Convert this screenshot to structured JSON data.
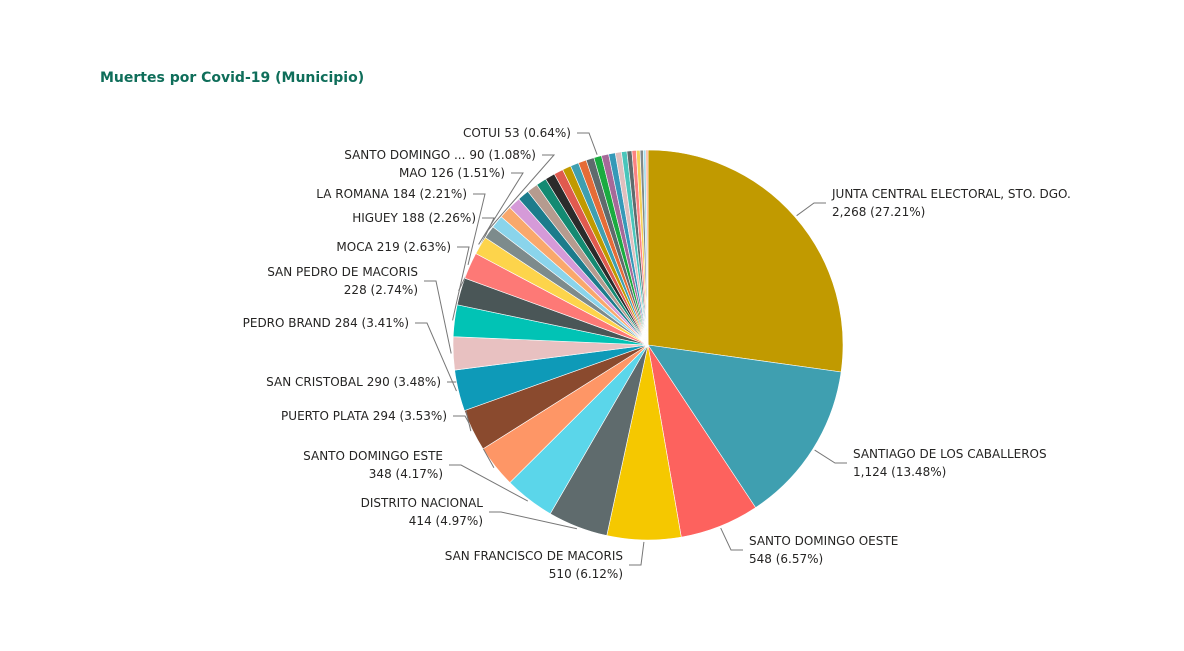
{
  "chart_data": {
    "type": "pie",
    "title": "Muertes por Covid-19 (Municipio)",
    "categories": [
      "JUNTA CENTRAL ELECTORAL, STO. DGO.",
      "SANTIAGO DE LOS CABALLEROS",
      "SANTO DOMINGO OESTE",
      "SAN FRANCISCO DE MACORIS",
      "DISTRITO NACIONAL",
      "SANTO DOMINGO ESTE",
      "PUERTO PLATA",
      "SAN CRISTOBAL",
      "PEDRO BRAND",
      "SAN PEDRO DE MACORIS",
      "MOCA",
      "HIGUEY",
      "LA ROMANA",
      "MAO",
      "SANTO DOMINGO ...",
      null,
      null,
      null,
      null,
      null,
      null,
      null,
      null,
      null,
      null,
      null,
      null,
      "COTUI",
      null,
      null,
      null,
      null,
      null,
      null,
      null,
      null,
      null,
      null
    ],
    "values": [
      2268,
      1124,
      548,
      510,
      414,
      348,
      294,
      290,
      284,
      228,
      219,
      188,
      184,
      126,
      90,
      89,
      86,
      84,
      80,
      76,
      72,
      68,
      64,
      60,
      57,
      56,
      55,
      53,
      50,
      46,
      42,
      38,
      34,
      30,
      26,
      22,
      18,
      14
    ],
    "value_labels": [
      "2,268 (27.21%)",
      "1,124 (13.48%)",
      "548 (6.57%)",
      "510 (6.12%)",
      "414 (4.97%)",
      "348 (4.17%)",
      "294 (3.53%)",
      "290 (3.48%)",
      "284 (3.41%)",
      "228 (2.74%)",
      "219 (2.63%)",
      "188 (2.26%)",
      "184 (2.21%)",
      "126 (1.51%)",
      "90 (1.08%)",
      null,
      null,
      null,
      null,
      null,
      null,
      null,
      null,
      null,
      null,
      null,
      null,
      "53 (0.64%)",
      null,
      null,
      null,
      null,
      null,
      null,
      null,
      null,
      null,
      null
    ],
    "colors": [
      "#c19a00",
      "#3f9fb0",
      "#fd625e",
      "#f5c800",
      "#5f6b6d",
      "#5bd6ea",
      "#fe9666",
      "#8a4a2e",
      "#0e9ab8",
      "#e8c1c1",
      "#01c3b5",
      "#4a5657",
      "#fd7976",
      "#fdd44b",
      "#7d8b8c",
      "#8ad4eb",
      "#f9a86c",
      "#d59ad8",
      "#1c7c8c",
      "#b59b8f",
      "#138a72",
      "#2b2b2b",
      "#e05a4f",
      "#c19a00",
      "#3f9fb0",
      "#e66c37",
      "#5f6b6d",
      "#1aab40",
      "#a66999",
      "#3599b8",
      "#dfbfbf",
      "#4ac5bb",
      "#5f6b6d",
      "#fb8281",
      "#f4d25a",
      "#7f898a",
      "#a4ddee",
      "#fdab89"
    ]
  }
}
